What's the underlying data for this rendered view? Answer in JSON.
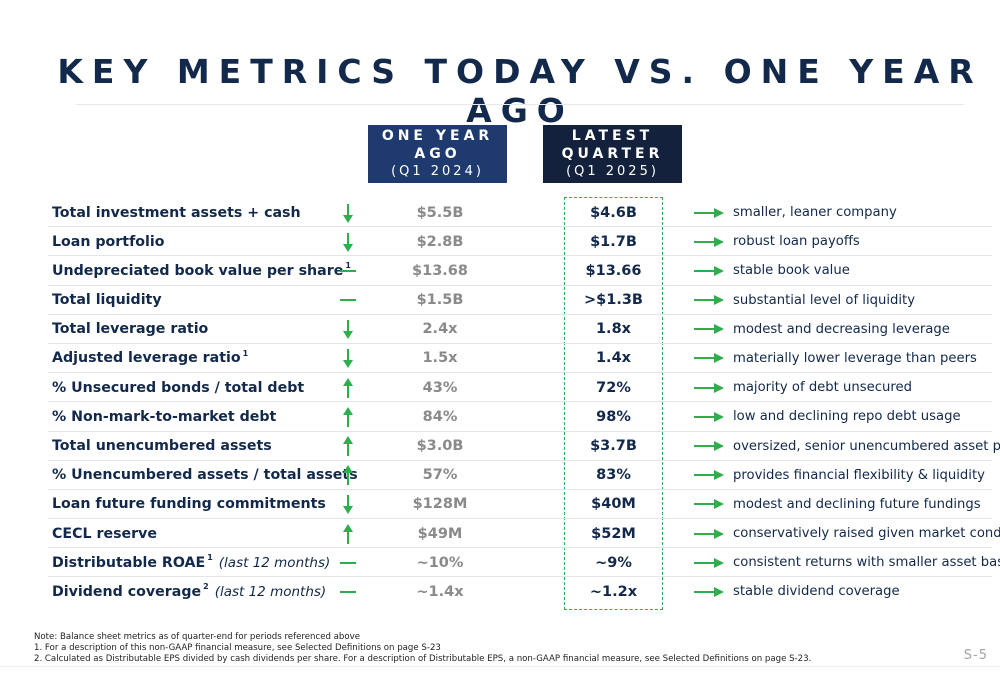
{
  "title": "KEY METRICS TODAY VS. ONE YEAR AGO",
  "headers": {
    "year_ago": {
      "line1": "ONE YEAR",
      "line2": "AGO",
      "line3": "(Q1 2024)"
    },
    "latest": {
      "line1": "LATEST",
      "line2": "QUARTER",
      "line3": "(Q1 2025)"
    }
  },
  "colors": {
    "navy": "#13294b",
    "header_blue": "#1f3a6e",
    "header_dark": "#13213c",
    "green": "#2fae4e",
    "gray_value": "#8a8a8a"
  },
  "rows": [
    {
      "label": "Total investment assets + cash",
      "sup": "",
      "note": "",
      "trend": "down",
      "prev": "$5.5B",
      "curr": "$4.6B",
      "comment": "smaller, leaner company"
    },
    {
      "label": "Loan portfolio",
      "sup": "",
      "note": "",
      "trend": "down",
      "prev": "$2.8B",
      "curr": "$1.7B",
      "comment": "robust loan payoffs"
    },
    {
      "label": "Undepreciated book value per share",
      "sup": "1",
      "note": "",
      "trend": "flat",
      "prev": "$13.68",
      "curr": "$13.66",
      "comment": "stable book value"
    },
    {
      "label": "Total liquidity",
      "sup": "",
      "note": "",
      "trend": "flat",
      "prev": "$1.5B",
      "curr": ">$1.3B",
      "comment": "substantial level of liquidity"
    },
    {
      "label": "Total leverage ratio",
      "sup": "",
      "note": "",
      "trend": "down",
      "prev": "2.4x",
      "curr": "1.8x",
      "comment": "modest and decreasing leverage"
    },
    {
      "label": "Adjusted leverage ratio",
      "sup": "1",
      "note": "",
      "trend": "down",
      "prev": "1.5x",
      "curr": "1.4x",
      "comment": "materially lower leverage than peers"
    },
    {
      "label": "% Unsecured bonds / total debt",
      "sup": "",
      "note": "",
      "trend": "up",
      "prev": "43%",
      "curr": "72%",
      "comment": "majority of debt unsecured"
    },
    {
      "label": "% Non-mark-to-market debt",
      "sup": "",
      "note": "",
      "trend": "up",
      "prev": "84%",
      "curr": "98%",
      "comment": "low and declining repo debt usage"
    },
    {
      "label": "Total unencumbered assets",
      "sup": "",
      "note": "",
      "trend": "up",
      "prev": "$3.0B",
      "curr": "$3.7B",
      "comment": "oversized, senior unencumbered asset pool"
    },
    {
      "label": "% Unencumbered assets / total assets",
      "sup": "",
      "note": "",
      "trend": "up",
      "prev": "57%",
      "curr": "83%",
      "comment": "provides financial flexibility & liquidity"
    },
    {
      "label": "Loan future funding commitments",
      "sup": "",
      "note": "",
      "trend": "down",
      "prev": "$128M",
      "curr": "$40M",
      "comment": "modest and declining future fundings"
    },
    {
      "label": "CECL reserve",
      "sup": "",
      "note": "",
      "trend": "up",
      "prev": "$49M",
      "curr": "$52M",
      "comment": "conservatively raised given market conditions"
    },
    {
      "label": "Distributable ROAE",
      "sup": "1",
      "note": "(last 12 months)",
      "trend": "flat",
      "prev": "~10%",
      "curr": "~9%",
      "comment": "consistent returns with smaller asset base"
    },
    {
      "label": "Dividend coverage",
      "sup": "2",
      "note": "(last 12 months)",
      "trend": "flat",
      "prev": "~1.4x",
      "curr": "~1.2x",
      "comment": "stable dividend coverage"
    }
  ],
  "footnotes": {
    "note": "Note: Balance sheet metrics as of quarter-end for periods referenced above",
    "fn1": "1. For a description of this non-GAAP financial measure, see Selected Definitions on page S-23",
    "fn2": "2. Calculated as Distributable EPS divided by cash dividends per share. For a description of Distributable EPS, a non-GAAP financial measure, see Selected Definitions on page S-23."
  },
  "page_number": "S-5"
}
